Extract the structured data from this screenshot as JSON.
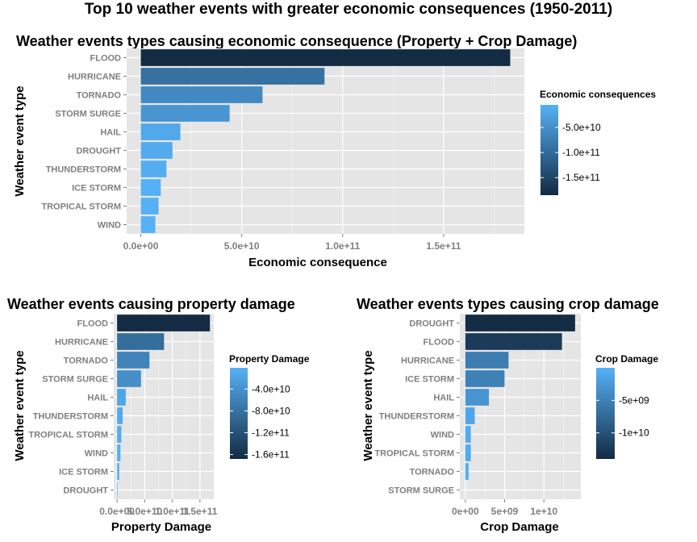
{
  "main_title": "Top 10 weather events with greater economic consequences (1950-2011)",
  "chart_data": [
    {
      "type": "bar",
      "orientation": "horizontal",
      "title": "Weather events types causing economic consequence (Property + Crop Damage)",
      "xlabel": "Economic consequence",
      "ylabel": "Weather event type",
      "categories": [
        "FLOOD",
        "HURRICANE",
        "TORNADO",
        "STORM SURGE",
        "HAIL",
        "DROUGHT",
        "THUNDERSTORM",
        "ICE STORM",
        "TROPICAL STORM",
        "WIND"
      ],
      "values": [
        183000000000,
        91000000000,
        60300000000,
        44000000000,
        19600000000,
        15700000000,
        12700000000,
        9900000000,
        8800000000,
        7200000000
      ],
      "xlim": [
        -7000000000,
        190000000000
      ],
      "xticks": [
        0,
        50000000000,
        100000000000,
        150000000000
      ],
      "xtick_labels": [
        "0.0e+00",
        "5.0e+10",
        "1.0e+11",
        "1.5e+11"
      ],
      "grid": true,
      "legend": {
        "title": "Economic consequences",
        "position": "right",
        "range": [
          -185000000000,
          -5000000000
        ],
        "ticks": [
          -50000000000,
          -100000000000,
          -150000000000
        ],
        "tick_labels": [
          "-5.0e+10",
          "-1.0e+11",
          "-1.5e+11"
        ]
      },
      "colors": {
        "low": "#132B43",
        "high": "#56B1F7",
        "panel": "#E5E5E5",
        "grid": "#FFFFFF"
      }
    },
    {
      "type": "bar",
      "orientation": "horizontal",
      "title": "Weather events causing property damage",
      "xlabel": "Property Damage",
      "ylabel": "Weather event type",
      "categories": [
        "FLOOD",
        "HURRICANE",
        "TORNADO",
        "STORM SURGE",
        "HAIL",
        "THUNDERSTORM",
        "TROPICAL STORM",
        "WIND",
        "ICE STORM",
        "DROUGHT"
      ],
      "values": [
        168000000000,
        85000000000,
        58600000000,
        43300000000,
        15700000000,
        10100000000,
        7700000000,
        6100000000,
        4000000000,
        1050000000
      ],
      "xlim": [
        -6000000000,
        175000000000
      ],
      "xticks": [
        0,
        50000000000,
        100000000000,
        150000000000
      ],
      "xtick_labels": [
        "0.0e+00",
        "5.0e+10",
        "1.0e+11",
        "1.5e+11"
      ],
      "grid": true,
      "legend": {
        "title": "Property Damage",
        "position": "right",
        "range": [
          -168000000000,
          -1000000000
        ],
        "ticks": [
          -40000000000,
          -80000000000,
          -120000000000,
          -160000000000
        ],
        "tick_labels": [
          "-4.0e+10",
          "-8.0e+10",
          "-1.2e+11",
          "-1.6e+11"
        ]
      },
      "colors": {
        "low": "#132B43",
        "high": "#56B1F7",
        "panel": "#E5E5E5",
        "grid": "#FFFFFF"
      }
    },
    {
      "type": "bar",
      "orientation": "horizontal",
      "title": "Weather events types causing crop damage",
      "xlabel": "Crop Damage",
      "ylabel": "Weather event type",
      "categories": [
        "DROUGHT",
        "FLOOD",
        "HURRICANE",
        "ICE STORM",
        "HAIL",
        "THUNDERSTORM",
        "WIND",
        "TROPICAL STORM",
        "TORNADO",
        "STORM SURGE"
      ],
      "values": [
        13970000000,
        12300000000,
        5500000000,
        5000000000,
        3000000000,
        1200000000,
        700000000,
        700000000,
        420000000,
        0
      ],
      "xlim": [
        -700000000,
        14700000000
      ],
      "xticks": [
        0,
        5000000000,
        10000000000
      ],
      "xtick_labels": [
        "0e+00",
        "5e+09",
        "1e+10"
      ],
      "grid": true,
      "legend": {
        "title": "Crop Damage",
        "position": "right",
        "range": [
          -14000000000,
          0
        ],
        "ticks": [
          -5000000000,
          -10000000000
        ],
        "tick_labels": [
          "-5e+09",
          "-1e+10"
        ]
      },
      "colors": {
        "low": "#132B43",
        "high": "#56B1F7",
        "panel": "#E5E5E5",
        "grid": "#FFFFFF"
      }
    }
  ]
}
